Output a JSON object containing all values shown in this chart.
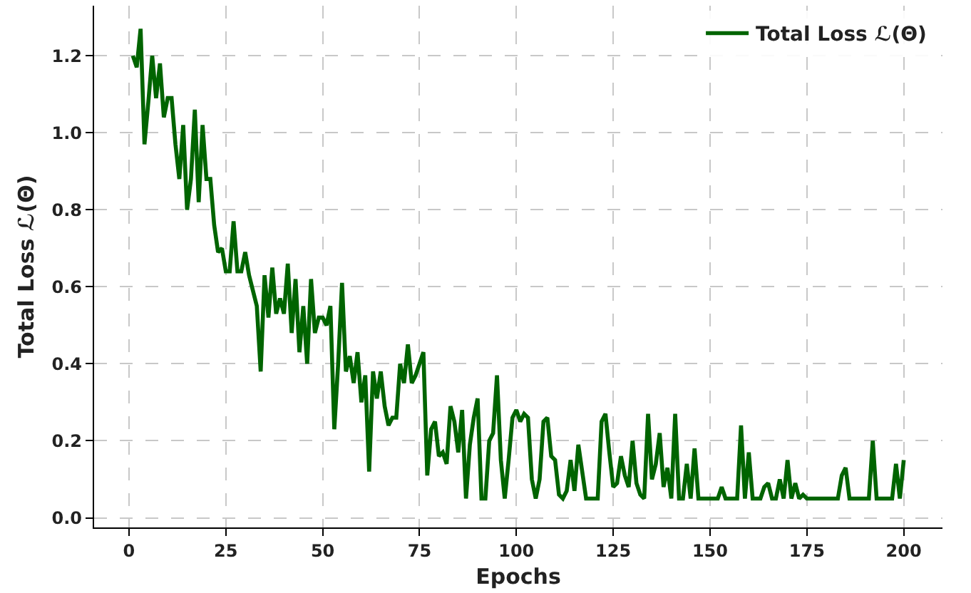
{
  "chart_data": {
    "type": "line",
    "xlabel": "Epochs",
    "ylabel": "Total Loss ℒ(Θ)",
    "x": [
      1,
      2,
      3,
      4,
      5,
      6,
      7,
      8,
      9,
      10,
      11,
      12,
      13,
      14,
      15,
      16,
      17,
      18,
      19,
      20,
      21,
      22,
      23,
      24,
      25,
      26,
      27,
      28,
      29,
      30,
      31,
      32,
      33,
      34,
      35,
      36,
      37,
      38,
      39,
      40,
      41,
      42,
      43,
      44,
      45,
      46,
      47,
      48,
      49,
      50,
      51,
      52,
      53,
      54,
      55,
      56,
      57,
      58,
      59,
      60,
      61,
      62,
      63,
      64,
      65,
      66,
      67,
      68,
      69,
      70,
      71,
      72,
      73,
      74,
      75,
      76,
      77,
      78,
      79,
      80,
      81,
      82,
      83,
      84,
      85,
      86,
      87,
      88,
      89,
      90,
      91,
      92,
      93,
      94,
      95,
      96,
      97,
      98,
      99,
      100,
      101,
      102,
      103,
      104,
      105,
      106,
      107,
      108,
      109,
      110,
      111,
      112,
      113,
      114,
      115,
      116,
      117,
      118,
      119,
      120,
      121,
      122,
      123,
      124,
      125,
      126,
      127,
      128,
      129,
      130,
      131,
      132,
      133,
      134,
      135,
      136,
      137,
      138,
      139,
      140,
      141,
      142,
      143,
      144,
      145,
      146,
      147,
      148,
      149,
      150,
      151,
      152,
      153,
      154,
      155,
      156,
      157,
      158,
      159,
      160,
      161,
      162,
      163,
      164,
      165,
      166,
      167,
      168,
      169,
      170,
      171,
      172,
      173,
      174,
      175,
      176,
      177,
      178,
      179,
      180,
      181,
      182,
      183,
      184,
      185,
      186,
      187,
      188,
      189,
      190,
      191,
      192,
      193,
      194,
      195,
      196,
      197,
      198,
      199,
      200
    ],
    "series": [
      {
        "name": "Total Loss ℒ(Θ)",
        "color": "#006400",
        "values": [
          1.2,
          1.17,
          1.27,
          0.97,
          1.08,
          1.2,
          1.09,
          1.18,
          1.04,
          1.09,
          1.09,
          0.97,
          0.88,
          1.02,
          0.8,
          0.88,
          1.06,
          0.82,
          1.02,
          0.88,
          0.88,
          0.76,
          0.69,
          0.7,
          0.64,
          0.64,
          0.77,
          0.64,
          0.64,
          0.69,
          0.63,
          0.59,
          0.55,
          0.38,
          0.63,
          0.52,
          0.65,
          0.53,
          0.57,
          0.53,
          0.66,
          0.48,
          0.62,
          0.43,
          0.55,
          0.4,
          0.62,
          0.48,
          0.52,
          0.52,
          0.5,
          0.55,
          0.23,
          0.4,
          0.61,
          0.38,
          0.42,
          0.35,
          0.43,
          0.3,
          0.37,
          0.12,
          0.38,
          0.31,
          0.38,
          0.29,
          0.24,
          0.26,
          0.26,
          0.4,
          0.35,
          0.45,
          0.35,
          0.37,
          0.4,
          0.43,
          0.11,
          0.23,
          0.25,
          0.16,
          0.17,
          0.14,
          0.29,
          0.25,
          0.17,
          0.28,
          0.05,
          0.19,
          0.26,
          0.31,
          0.05,
          0.05,
          0.2,
          0.22,
          0.37,
          0.15,
          0.05,
          0.15,
          0.26,
          0.28,
          0.25,
          0.27,
          0.26,
          0.1,
          0.05,
          0.1,
          0.25,
          0.26,
          0.16,
          0.15,
          0.06,
          0.05,
          0.07,
          0.15,
          0.07,
          0.19,
          0.12,
          0.05,
          0.05,
          0.05,
          0.05,
          0.25,
          0.27,
          0.17,
          0.08,
          0.09,
          0.16,
          0.11,
          0.08,
          0.2,
          0.09,
          0.06,
          0.05,
          0.27,
          0.1,
          0.14,
          0.22,
          0.08,
          0.13,
          0.05,
          0.27,
          0.05,
          0.05,
          0.14,
          0.05,
          0.18,
          0.05,
          0.05,
          0.05,
          0.05,
          0.05,
          0.05,
          0.08,
          0.05,
          0.05,
          0.05,
          0.05,
          0.24,
          0.05,
          0.17,
          0.05,
          0.05,
          0.05,
          0.08,
          0.09,
          0.05,
          0.05,
          0.1,
          0.05,
          0.15,
          0.05,
          0.09,
          0.05,
          0.06,
          0.05,
          0.05,
          0.05,
          0.05,
          0.05,
          0.05,
          0.05,
          0.05,
          0.05,
          0.11,
          0.13,
          0.05,
          0.05,
          0.05,
          0.05,
          0.05,
          0.05,
          0.2,
          0.05,
          0.05,
          0.05,
          0.05,
          0.05,
          0.14,
          0.05,
          0.15
        ]
      }
    ],
    "xlim": [
      -9,
      210
    ],
    "ylim": [
      -0.025,
      1.33
    ],
    "xticks": [
      0,
      25,
      50,
      75,
      100,
      125,
      150,
      175,
      200
    ],
    "yticks": [
      {
        "value": 0,
        "label": "0.0"
      },
      {
        "value": 0.2,
        "label": "0.2"
      },
      {
        "value": 0.4,
        "label": "0.4"
      },
      {
        "value": 0.6,
        "label": "0.6"
      },
      {
        "value": 0.8,
        "label": "0.8"
      },
      {
        "value": 1.0,
        "label": "1.0"
      },
      {
        "value": 1.2,
        "label": "1.2"
      }
    ],
    "grid": true,
    "legend": "top right",
    "marker": "none",
    "line_style": "solid"
  }
}
